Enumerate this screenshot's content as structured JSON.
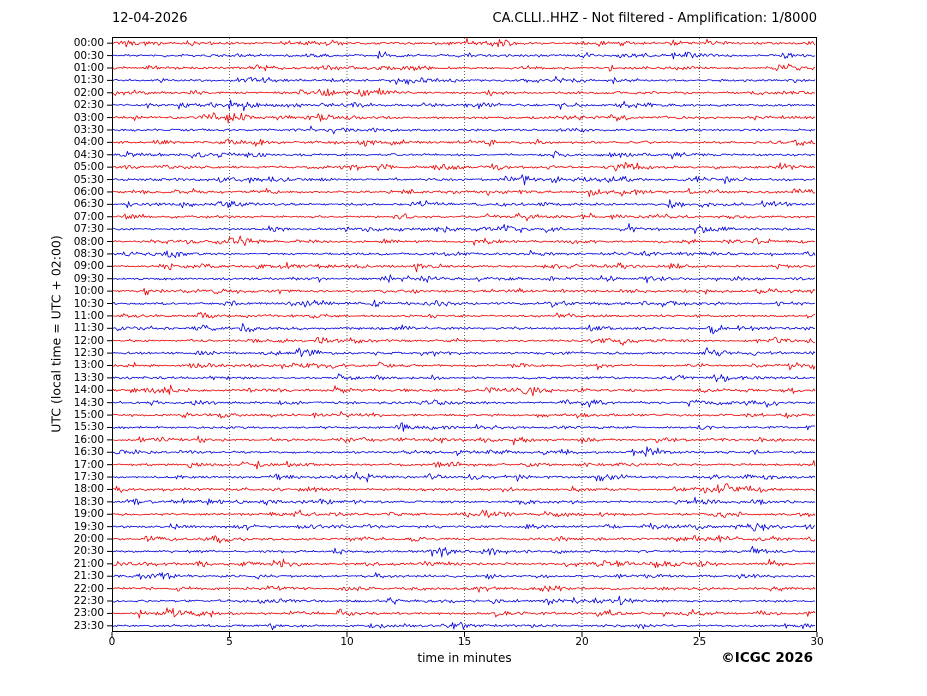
{
  "header": {
    "date_title": "12-04-2026",
    "station_title": "CA.CLLI..HHZ - Not filtered - Amplification: 1/8000"
  },
  "footer": {
    "copyright": "©ICGC 2026"
  },
  "chart_data": {
    "type": "line",
    "subtype": "helicorder-seismogram",
    "date": "12-04-2026",
    "station": "CA.CLLI..HHZ",
    "filter": "Not filtered",
    "amplification": "1/8000",
    "title": "CA.CLLI..HHZ - Not filtered - Amplification: 1/8000",
    "xlabel": "time in minutes",
    "ylabel": "UTC (local time = UTC + 02:00)",
    "x_range": [
      0,
      30
    ],
    "x_ticks": [
      0,
      5,
      10,
      15,
      20,
      25,
      30
    ],
    "minutes_per_row": 30,
    "row_count": 48,
    "row_labels": [
      "00:00",
      "00:30",
      "01:00",
      "01:30",
      "02:00",
      "02:30",
      "03:00",
      "03:30",
      "04:00",
      "04:30",
      "05:00",
      "05:30",
      "06:00",
      "06:30",
      "07:00",
      "07:30",
      "08:00",
      "08:30",
      "09:00",
      "09:30",
      "10:00",
      "10:30",
      "11:00",
      "11:30",
      "12:00",
      "12:30",
      "13:00",
      "13:30",
      "14:00",
      "14:30",
      "15:00",
      "15:30",
      "16:00",
      "16:30",
      "17:00",
      "17:30",
      "18:00",
      "18:30",
      "19:00",
      "19:30",
      "20:00",
      "20:30",
      "21:00",
      "21:30",
      "22:00",
      "22:30",
      "23:00",
      "23:30"
    ],
    "trace_colors": [
      "#ee0000",
      "#0000dd"
    ],
    "trace_color_rule": "rows starting on the hour are red, half-hour rows are blue, alternating every 30 minutes",
    "grid": {
      "axis": "x",
      "interval_min": 5,
      "style": "dotted",
      "color": "#666666"
    },
    "axis_color": "#000000",
    "legend": "none",
    "signal_summary": "Continuous low-amplitude background seismic noise on all 48 half-hour traces with frequent small wave packets; slightly stronger burst at start of 21:00 row; no large seismic events."
  }
}
